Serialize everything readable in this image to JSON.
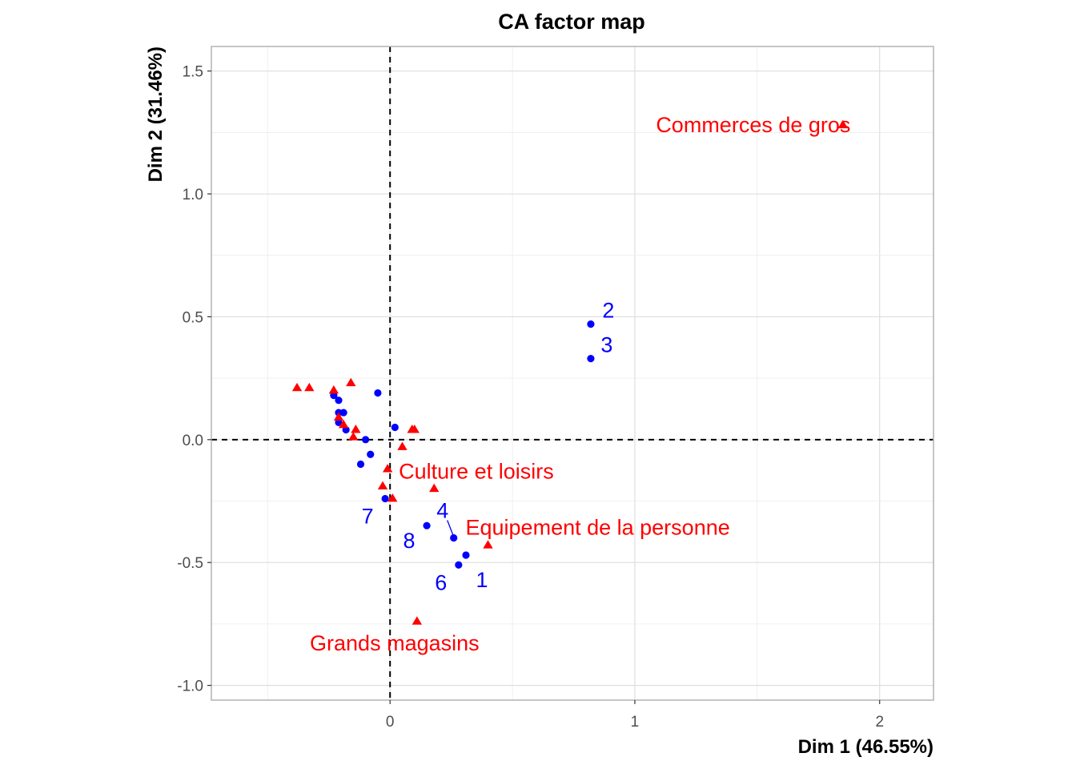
{
  "chart_data": {
    "type": "scatter",
    "title": "CA factor map",
    "xlabel": "Dim 1 (46.55%)",
    "ylabel": "Dim 2 (31.46%)",
    "xlim": [
      -0.73,
      2.22
    ],
    "ylim": [
      -1.06,
      1.6
    ],
    "x_ticks": [
      0,
      1,
      2
    ],
    "x_tick_labels": [
      "0",
      "1",
      "2"
    ],
    "y_ticks": [
      -1.0,
      -0.5,
      0.0,
      0.5,
      1.0,
      1.5
    ],
    "y_tick_labels": [
      "-1.0",
      "-0.5",
      "0.0",
      "0.5",
      "1.0",
      "1.5"
    ],
    "grid": true,
    "zero_lines": "dashed",
    "colors": {
      "rows": "#0000ff",
      "cols": "#ff0000"
    },
    "series": [
      {
        "marker": "circle",
        "color": "#0000ff",
        "points": [
          {
            "x": 0.82,
            "y": 0.47,
            "label": "2"
          },
          {
            "x": 0.82,
            "y": 0.33,
            "label": "3"
          },
          {
            "x": 0.31,
            "y": -0.47,
            "label": "1"
          },
          {
            "x": 0.26,
            "y": -0.4,
            "label": "4"
          },
          {
            "x": 0.28,
            "y": -0.51,
            "label": "6"
          },
          {
            "x": -0.02,
            "y": -0.24,
            "label": "7"
          },
          {
            "x": 0.15,
            "y": -0.35,
            "label": "8"
          },
          {
            "x": -0.23,
            "y": 0.18,
            "label": ""
          },
          {
            "x": -0.21,
            "y": 0.16,
            "label": ""
          },
          {
            "x": -0.21,
            "y": 0.11,
            "label": ""
          },
          {
            "x": -0.19,
            "y": 0.11,
            "label": ""
          },
          {
            "x": -0.21,
            "y": 0.07,
            "label": ""
          },
          {
            "x": -0.18,
            "y": 0.04,
            "label": ""
          },
          {
            "x": -0.05,
            "y": 0.19,
            "label": ""
          },
          {
            "x": 0.02,
            "y": 0.05,
            "label": ""
          },
          {
            "x": -0.1,
            "y": 0.0,
            "label": ""
          },
          {
            "x": -0.08,
            "y": -0.06,
            "label": ""
          },
          {
            "x": -0.12,
            "y": -0.1,
            "label": ""
          }
        ]
      },
      {
        "marker": "triangle",
        "color": "#ff0000",
        "points": [
          {
            "x": 1.85,
            "y": 1.28,
            "label": "Commerces de gros"
          },
          {
            "x": -0.01,
            "y": -0.12,
            "label": "Culture et loisirs"
          },
          {
            "x": 0.4,
            "y": -0.43,
            "label": "Equipement de la personne"
          },
          {
            "x": 0.11,
            "y": -0.74,
            "label": "Grands magasins"
          },
          {
            "x": -0.38,
            "y": 0.21,
            "label": ""
          },
          {
            "x": -0.33,
            "y": 0.21,
            "label": ""
          },
          {
            "x": -0.23,
            "y": 0.2,
            "label": ""
          },
          {
            "x": -0.16,
            "y": 0.23,
            "label": ""
          },
          {
            "x": -0.21,
            "y": 0.09,
            "label": ""
          },
          {
            "x": -0.19,
            "y": 0.06,
            "label": ""
          },
          {
            "x": -0.14,
            "y": 0.04,
            "label": ""
          },
          {
            "x": -0.15,
            "y": 0.01,
            "label": ""
          },
          {
            "x": 0.09,
            "y": 0.04,
            "label": ""
          },
          {
            "x": 0.1,
            "y": 0.04,
            "label": ""
          },
          {
            "x": 0.05,
            "y": -0.03,
            "label": ""
          },
          {
            "x": -0.03,
            "y": -0.19,
            "label": ""
          },
          {
            "x": 0.01,
            "y": -0.24,
            "label": ""
          },
          {
            "x": 0.18,
            "y": -0.2,
            "label": ""
          }
        ]
      }
    ]
  }
}
